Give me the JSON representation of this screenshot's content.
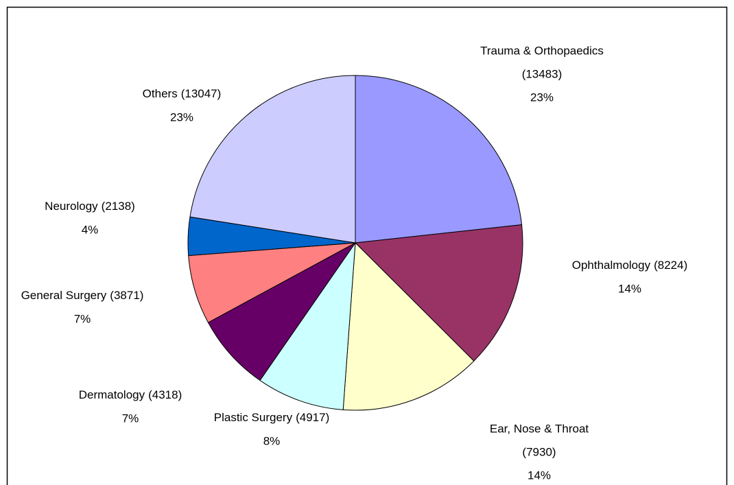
{
  "chart_data": {
    "type": "pie",
    "categories": [
      "Trauma & Orthopaedics",
      "Ophthalmology",
      "Ear, Nose & Throat",
      "Plastic Surgery",
      "Dermatology",
      "General Surgery",
      "Neurology",
      "Others"
    ],
    "values": [
      13483,
      8224,
      7930,
      4917,
      4318,
      3871,
      2138,
      13047
    ],
    "value_labels": [
      "(13483)",
      "(8224)",
      "(7930)",
      "(4917)",
      "(4318)",
      "(3871)",
      "(2138)",
      "(13047)"
    ],
    "percent_labels": [
      "23%",
      "14%",
      "14%",
      "8%",
      "7%",
      "7%",
      "4%",
      "23%"
    ],
    "colors": [
      "#9999ff",
      "#993366",
      "#ffffcc",
      "#ccffff",
      "#660066",
      "#ff8080",
      "#0066cc",
      "#ccccff"
    ]
  }
}
